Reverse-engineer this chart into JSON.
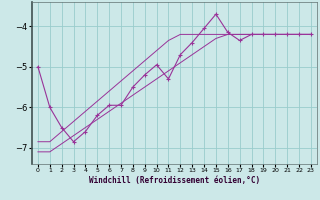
{
  "xlabel": "Windchill (Refroidissement éolien,°C)",
  "background_color": "#cce8e8",
  "grid_color": "#99cccc",
  "line_color": "#993399",
  "x_values": [
    0,
    1,
    2,
    3,
    4,
    5,
    6,
    7,
    8,
    9,
    10,
    11,
    12,
    13,
    14,
    15,
    16,
    17,
    18,
    19,
    20,
    21,
    22,
    23
  ],
  "y_main": [
    -5.0,
    -6.0,
    -6.5,
    -6.85,
    -6.6,
    -6.2,
    -5.95,
    -5.95,
    -5.5,
    -5.2,
    -4.95,
    -5.3,
    -4.7,
    -4.4,
    -4.05,
    -3.7,
    -4.15,
    -4.35,
    -4.2,
    -4.2,
    -4.2,
    -4.2,
    -4.2,
    -4.2
  ],
  "y_line1": [
    -6.85,
    -6.85,
    -6.6,
    -6.35,
    -6.1,
    -5.85,
    -5.6,
    -5.35,
    -5.1,
    -4.85,
    -4.6,
    -4.35,
    -4.2,
    -4.2,
    -4.2,
    -4.2,
    -4.2,
    -4.2,
    -4.2,
    -4.2,
    -4.2,
    -4.2,
    -4.2,
    -4.2
  ],
  "y_line2": [
    -7.1,
    -7.1,
    -6.9,
    -6.7,
    -6.5,
    -6.3,
    -6.1,
    -5.9,
    -5.7,
    -5.5,
    -5.3,
    -5.1,
    -4.9,
    -4.7,
    -4.5,
    -4.3,
    -4.2,
    -4.2,
    -4.2,
    -4.2,
    -4.2,
    -4.2,
    -4.2,
    -4.2
  ],
  "ylim": [
    -7.4,
    -3.4
  ],
  "yticks": [
    -7,
    -6,
    -5,
    -4
  ],
  "xlim": [
    -0.5,
    23.5
  ],
  "figsize": [
    3.2,
    2.0
  ],
  "dpi": 100
}
